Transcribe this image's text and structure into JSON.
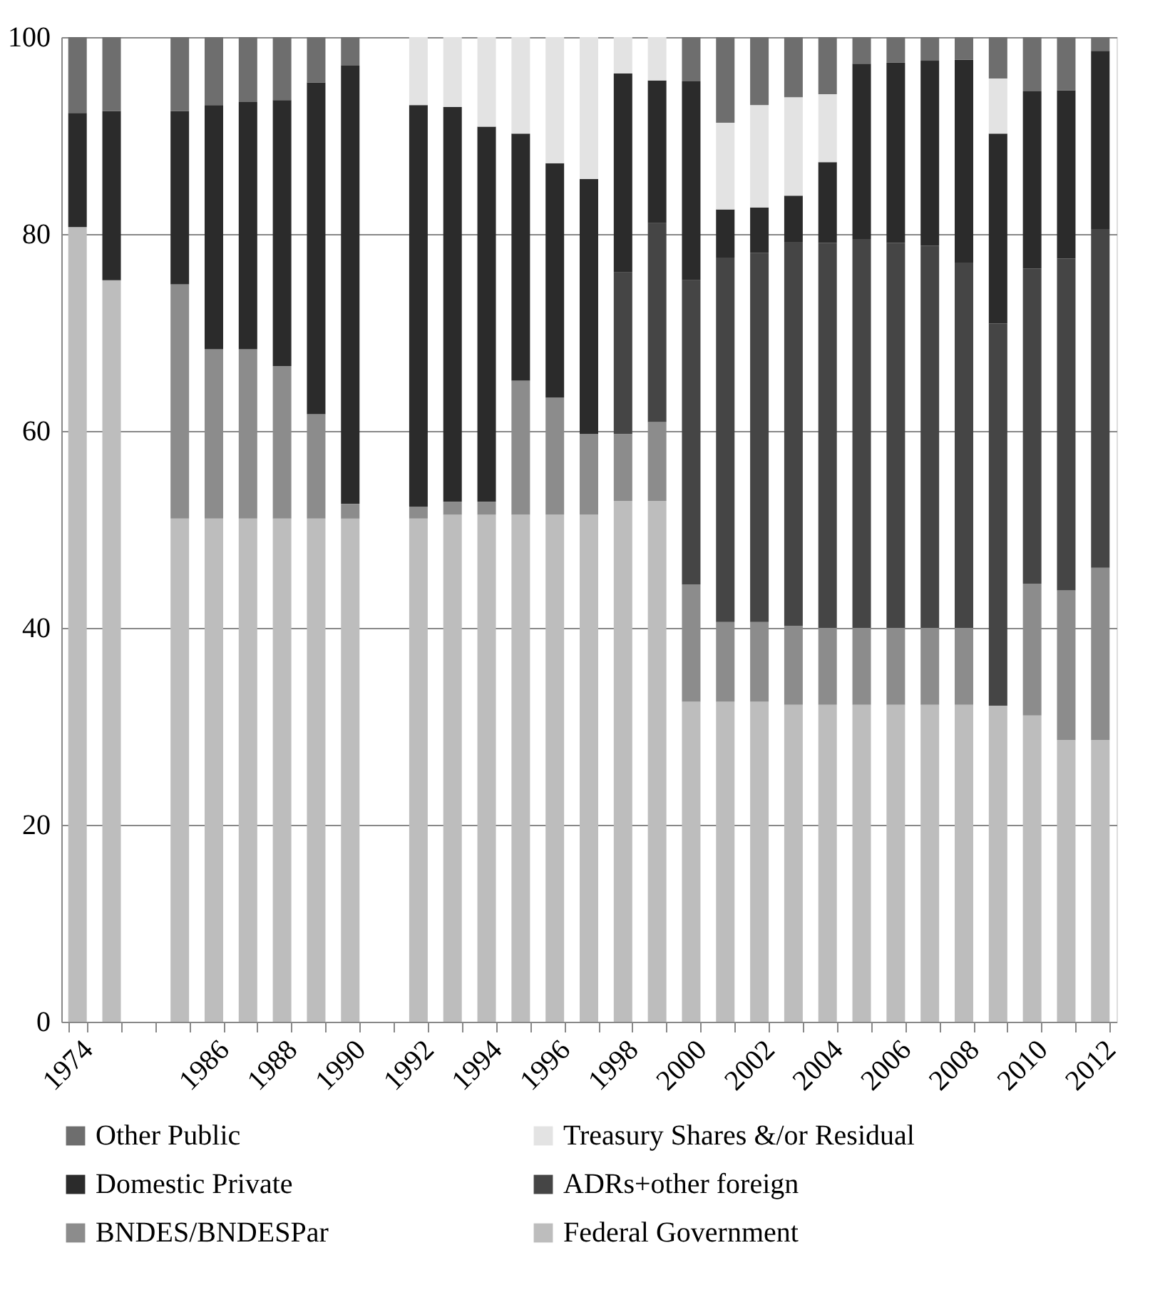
{
  "chart_data": {
    "type": "bar",
    "stacked": true,
    "categories": [
      "1974",
      null,
      null,
      null,
      "1986",
      null,
      "1988",
      null,
      "1990",
      null,
      "1992",
      null,
      "1994",
      null,
      "1996",
      null,
      "1998",
      null,
      "2000",
      null,
      "2002",
      null,
      "2004",
      null,
      "2006",
      null,
      "2008",
      null,
      "2010",
      null,
      "2012"
    ],
    "series": [
      {
        "name": "Federal Government",
        "color": "#bdbdbd",
        "values": [
          80.7,
          75.3,
          null,
          51.1,
          51.1,
          51.1,
          51.1,
          51.1,
          51.1,
          null,
          51.1,
          51.5,
          51.5,
          51.5,
          51.5,
          51.5,
          52.9,
          52.9,
          32.5,
          32.5,
          32.5,
          32.2,
          32.2,
          32.2,
          32.2,
          32.2,
          32.2,
          32.1,
          31.1,
          28.6,
          28.6
        ]
      },
      {
        "name": "BNDES/BNDESPar",
        "color": "#8c8c8c",
        "values": [
          0,
          0,
          null,
          23.8,
          17.2,
          17.2,
          15.5,
          10.6,
          1.5,
          null,
          1.2,
          1.3,
          1.3,
          13.6,
          11.9,
          8.2,
          6.8,
          8.0,
          11.9,
          8.1,
          8.1,
          8.0,
          7.8,
          7.8,
          7.8,
          7.8,
          7.8,
          0,
          13.4,
          15.2,
          17.5
        ]
      },
      {
        "name": "ADRs+other foreign",
        "color": "#454545",
        "values": [
          0,
          0,
          null,
          0,
          0,
          0,
          0,
          0,
          0,
          null,
          0,
          0,
          0,
          0,
          0,
          0,
          16.4,
          20.2,
          30.9,
          37.0,
          37.5,
          39.0,
          39.1,
          39.5,
          39.1,
          38.8,
          37.1,
          38.8,
          32.0,
          33.7,
          34.4
        ]
      },
      {
        "name": "Domestic Private",
        "color": "#2b2b2b",
        "values": [
          11.6,
          17.2,
          null,
          17.6,
          24.8,
          25.1,
          27.0,
          33.7,
          44.5,
          null,
          40.8,
          40.1,
          38.1,
          25.1,
          23.8,
          25.9,
          20.2,
          14.5,
          20.2,
          4.9,
          4.6,
          4.7,
          8.2,
          17.8,
          18.3,
          18.8,
          20.6,
          19.3,
          18.0,
          17.1,
          18.1
        ]
      },
      {
        "name": "Treasury Shares &/or Residual",
        "color": "#e3e3e3",
        "values": [
          0,
          0,
          null,
          0,
          0,
          0,
          0,
          0,
          0,
          null,
          6.9,
          7.1,
          9.1,
          9.8,
          12.8,
          14.4,
          3.7,
          4.4,
          0,
          8.8,
          10.4,
          10.0,
          6.9,
          0,
          0,
          0,
          0,
          5.6,
          0,
          0,
          0
        ]
      },
      {
        "name": "Other Public",
        "color": "#6e6e6e",
        "values": [
          7.7,
          7.5,
          null,
          7.5,
          6.9,
          6.6,
          6.4,
          4.6,
          2.9,
          null,
          0,
          0,
          0,
          0,
          0,
          0,
          0,
          0,
          4.5,
          8.7,
          6.9,
          6.1,
          5.8,
          2.7,
          2.6,
          2.4,
          2.3,
          4.2,
          5.5,
          5.4,
          1.4
        ]
      }
    ],
    "ylim": [
      0,
      100
    ],
    "yticks": [
      0,
      20,
      40,
      60,
      80,
      100
    ],
    "grid": "y",
    "legend": "bottom"
  }
}
